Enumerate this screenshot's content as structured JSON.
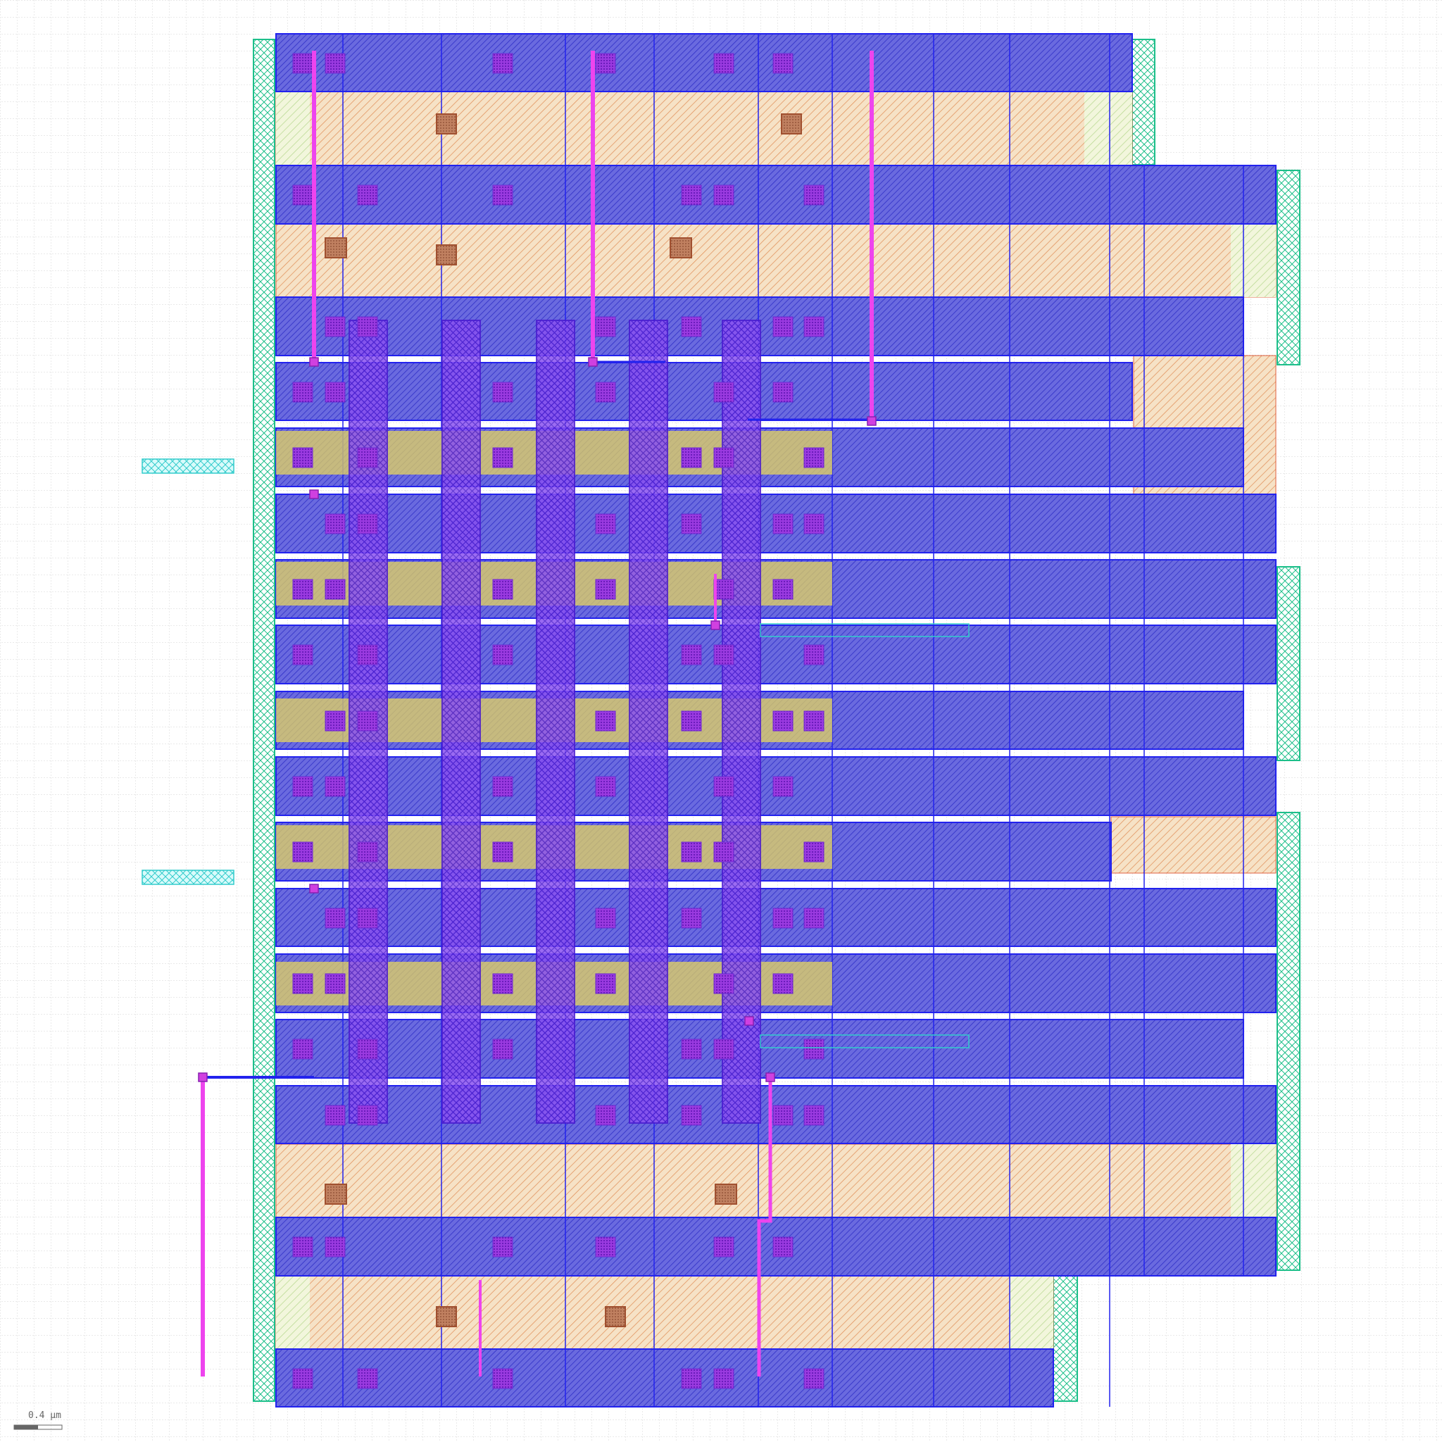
{
  "scale_bar": {
    "label": "0.4 µm"
  },
  "colors": {
    "background": "#ffffff",
    "grid": "#cfcfcf",
    "nwell": "#1dbf8a",
    "active": "#f3d7b0",
    "active_hatch": "#e0a070",
    "poly_red": "#e04040",
    "metal1": "#4848cc",
    "metal1_stroke": "#2222ee",
    "poly_gate": "#7030ff",
    "gate_highlight": "#eedd55",
    "contact": "#b07070",
    "via_purple": "#8844dd",
    "metal2": "#ee44ee",
    "pin": "#44dddd"
  },
  "layers": [
    "nwell",
    "active",
    "poly",
    "metal1",
    "contact",
    "via",
    "metal2",
    "pin"
  ]
}
